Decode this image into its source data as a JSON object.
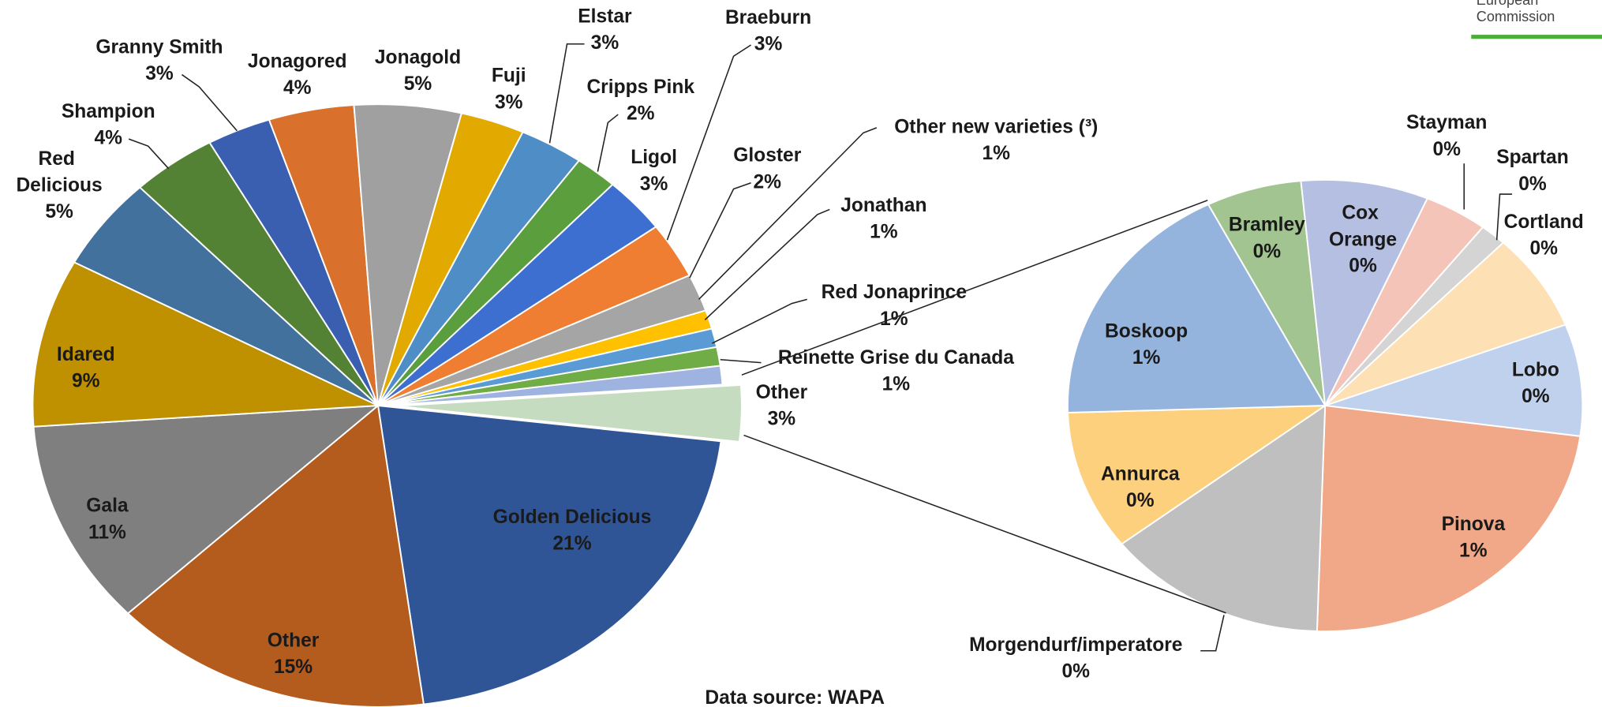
{
  "chart_data": [
    {
      "type": "pie",
      "categories": [
        "Other",
        "Golden Delicious",
        "Other",
        "Gala",
        "Idared",
        "Red Delicious",
        "Shampion",
        "Granny Smith",
        "Jonagored",
        "Jonagold",
        "Fuji",
        "Elstar",
        "Cripps Pink",
        "Ligol",
        "Braeburn",
        "Gloster",
        "Other new varieties (³)",
        "Jonathan",
        "Red Jonaprince",
        "Reinette Grise du Canada"
      ],
      "values": [
        3,
        21,
        15,
        11,
        9,
        5,
        4,
        3,
        4,
        5,
        3,
        3,
        2,
        3,
        3,
        2,
        1,
        1,
        1,
        1
      ],
      "value_labels": [
        "3%",
        "21%",
        "15%",
        "11%",
        "9%",
        "5%",
        "4%",
        "3%",
        "4%",
        "5%",
        "3%",
        "3%",
        "2%",
        "3%",
        "3%",
        "2%",
        "1%",
        "1%",
        "1%",
        "1%"
      ],
      "colors": [
        "#c5dcc0",
        "#2f5597",
        "#b35c1e",
        "#7f7f7f",
        "#bf9000",
        "#41719c",
        "#548235",
        "#3a5fb0",
        "#d9712d",
        "#a0a0a0",
        "#e2aa00",
        "#4f8dc7",
        "#5a9e3d",
        "#3d6fd0",
        "#ef7d32",
        "#a5a5a5",
        "#ffc000",
        "#5b9bd5",
        "#70ad47",
        "#9fb3e0"
      ]
    },
    {
      "type": "pie",
      "categories": [
        "Bramley",
        "Cox Orange",
        "Stayman",
        "Spartan",
        "Cortland",
        "Lobo",
        "Pinova",
        "Morgendurf/imperatore",
        "Annurca",
        "Boskoop"
      ],
      "values": [
        0.18,
        0.24,
        0.12,
        0.05,
        0.21,
        0.24,
        0.7,
        0.42,
        0.3,
        0.54
      ],
      "value_labels": [
        "0%",
        "0%",
        "0%",
        "0%",
        "0%",
        "0%",
        "1%",
        "0%",
        "0%",
        "1%"
      ],
      "colors": [
        "#a1c490",
        "#b4bfe2",
        "#f4c4b8",
        "#d4d4d4",
        "#fde0b3",
        "#bfd1ec",
        "#f0a888",
        "#bfbfbf",
        "#fdd07e",
        "#94b4de"
      ]
    }
  ],
  "footnote": "Data source: WAPA",
  "logo": {
    "line1": "European",
    "line2": "Commission"
  }
}
